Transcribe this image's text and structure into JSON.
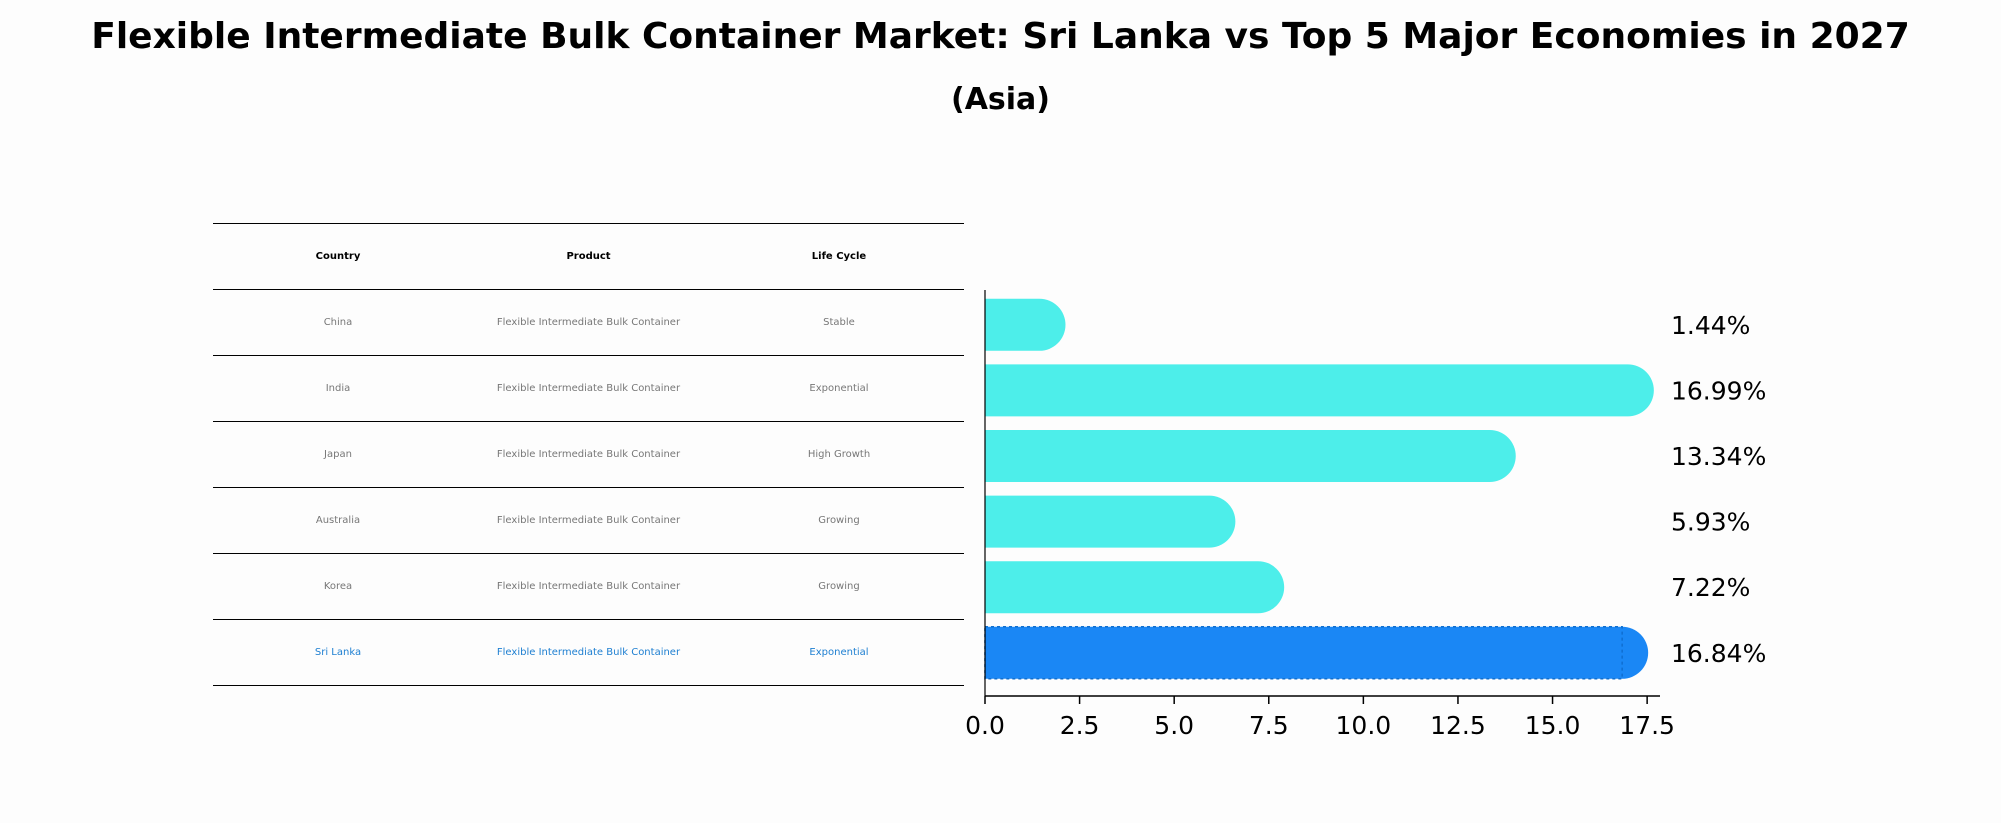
{
  "title": "Flexible Intermediate Bulk Container Market: Sri Lanka vs Top 5 Major Economies in 2027",
  "subtitle": "(Asia)",
  "table": {
    "headers": [
      "Country",
      "Product",
      "Life Cycle"
    ],
    "rows": [
      {
        "country": "China",
        "product": "Flexible Intermediate Bulk Container",
        "life_cycle": "Stable"
      },
      {
        "country": "India",
        "product": "Flexible Intermediate Bulk Container",
        "life_cycle": "Exponential"
      },
      {
        "country": "Japan",
        "product": "Flexible Intermediate Bulk Container",
        "life_cycle": "High Growth"
      },
      {
        "country": "Australia",
        "product": "Flexible Intermediate Bulk Container",
        "life_cycle": "Growing"
      },
      {
        "country": "Korea",
        "product": "Flexible Intermediate Bulk Container",
        "life_cycle": "Growing"
      },
      {
        "country": "Sri Lanka",
        "product": "Flexible Intermediate Bulk Container",
        "life_cycle": "Exponential"
      }
    ]
  },
  "colors": {
    "bar": "#4deeea",
    "highlight_bar": "#1a87f5",
    "highlight_text": "#1e7fd1",
    "table_text": "#777777"
  },
  "chart_data": {
    "type": "bar",
    "orientation": "horizontal",
    "categories": [
      "China",
      "India",
      "Japan",
      "Australia",
      "Korea",
      "Sri Lanka"
    ],
    "values": [
      1.44,
      16.99,
      13.34,
      5.93,
      7.22,
      16.84
    ],
    "value_labels": [
      "1.44%",
      "16.99%",
      "13.34%",
      "5.93%",
      "7.22%",
      "16.84%"
    ],
    "highlight": "Sri Lanka",
    "xlim": [
      0,
      17.84
    ],
    "xticks": [
      0.0,
      2.5,
      5.0,
      7.5,
      10.0,
      12.5,
      15.0,
      17.5
    ],
    "xtick_labels": [
      "0.0",
      "2.5",
      "5.0",
      "7.5",
      "10.0",
      "12.5",
      "15.0",
      "17.5"
    ],
    "xlabel": "",
    "ylabel": ""
  }
}
